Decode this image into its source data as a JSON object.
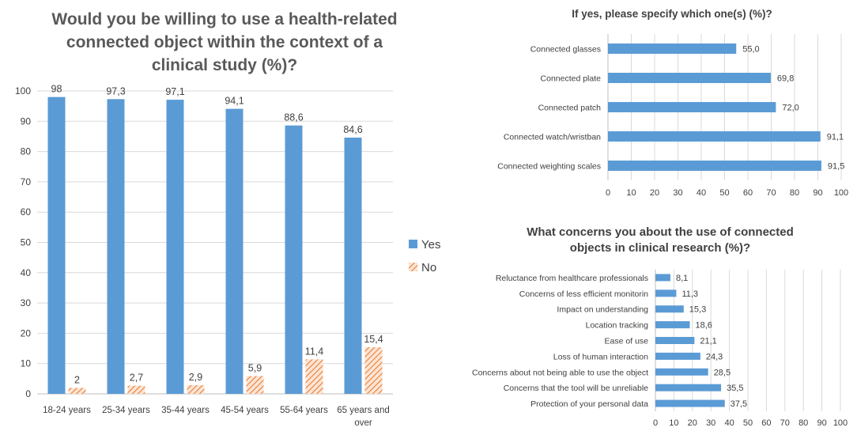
{
  "chart_data": [
    {
      "type": "bar",
      "title": "Would you be willing to use a health-related connected object within the context of a clinical study (%)?",
      "title_lines": [
        "Would you be willing to use a health-related",
        "connected object within the context of a",
        "clinical study (%)?"
      ],
      "categories": [
        "18-24 years",
        "25-34 years",
        "35-44 years",
        "45-54 years",
        "55-64 years",
        "65 years and over"
      ],
      "category_lines": [
        [
          "18-24 years"
        ],
        [
          "25-34 years"
        ],
        [
          "35-44 years"
        ],
        [
          "45-54 years"
        ],
        [
          "55-64 years"
        ],
        [
          "65 years and",
          "over"
        ]
      ],
      "series": [
        {
          "name": "Yes",
          "color": "#5b9bd5",
          "values": [
            98,
            97.3,
            97.1,
            94.1,
            88.6,
            84.6
          ],
          "labels": [
            "98",
            "97,3",
            "97,1",
            "94,1",
            "88,6",
            "84,6"
          ]
        },
        {
          "name": "No",
          "color": "#ed7d31",
          "values": [
            2,
            2.7,
            2.9,
            5.9,
            11.4,
            15.4
          ],
          "labels": [
            "2",
            "2,7",
            "2,9",
            "5,9",
            "11,4",
            "15,4"
          ]
        }
      ],
      "ylim": [
        0,
        100
      ],
      "yticks": [
        "0",
        "10",
        "20",
        "30",
        "40",
        "50",
        "60",
        "70",
        "80",
        "90",
        "100"
      ],
      "grid": true,
      "legend": "right"
    },
    {
      "type": "bar",
      "orientation": "horizontal",
      "title": "If yes, please specify which one(s) (%)?",
      "categories": [
        "Connected glasses",
        "Connected plate",
        "Connected patch",
        "Connected watch/wristban",
        "Connected weighting scales"
      ],
      "values": [
        55.0,
        69.8,
        72.0,
        91.1,
        91.5
      ],
      "labels": [
        "55,0",
        "69,8",
        "72,0",
        "91,1",
        "91,5"
      ],
      "color": "#5b9bd5",
      "xlim": [
        0,
        100
      ],
      "xticks": [
        "0",
        "10",
        "20",
        "30",
        "40",
        "50",
        "60",
        "70",
        "80",
        "90",
        "100"
      ],
      "grid": true
    },
    {
      "type": "bar",
      "orientation": "horizontal",
      "title": "What concerns you about the use of connected objects in clinical research (%)?",
      "title_lines": [
        "What concerns you about the use of connected",
        "objects in clinical research (%)?"
      ],
      "categories": [
        "Reluctance from healthcare professionals",
        "Concerns of less efficient monitorin",
        "Impact on understanding",
        "Location tracking",
        "Ease of use",
        "Loss of human interaction",
        "Concerns about not being able to use the object",
        "Concerns that the tool will be unreliable",
        "Protection of your personal data"
      ],
      "values": [
        8.1,
        11.3,
        15.3,
        18.6,
        21.1,
        24.3,
        28.5,
        35.5,
        37.5
      ],
      "labels": [
        "8,1",
        "11,3",
        "15,3",
        "18,6",
        "21,1",
        "24,3",
        "28,5",
        "35,5",
        "37,5"
      ],
      "color": "#5b9bd5",
      "xlim": [
        0,
        100
      ],
      "xticks": [
        "0",
        "10",
        "20",
        "30",
        "40",
        "50",
        "60",
        "70",
        "80",
        "90",
        "100"
      ],
      "grid": true
    }
  ]
}
